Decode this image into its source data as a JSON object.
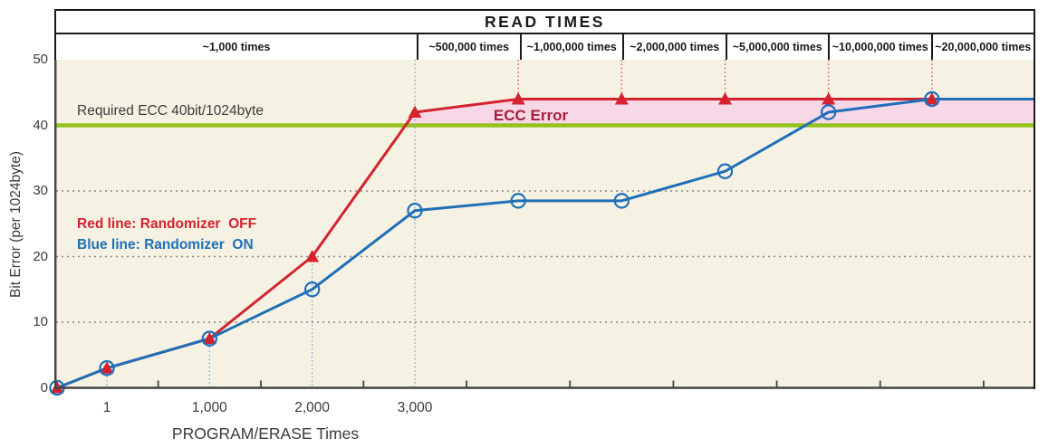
{
  "title": "READ TIMES",
  "read_time_columns": [
    "~1,000 times",
    "~500,000 times",
    "~1,000,000 times",
    "~2,000,000 times",
    "~5,000,000 times",
    "~10,000,000 times",
    "~20,000,000 times"
  ],
  "y_axis": {
    "label": "Bit Error (per 1024byte)",
    "ticks": [
      0,
      10,
      20,
      30,
      40,
      50
    ]
  },
  "x_axis": {
    "label": "PROGRAM/ERASE Times",
    "ticks": [
      "1",
      "1,000",
      "2,000",
      "3,000"
    ]
  },
  "annotations": {
    "threshold_label": "Required ECC 40bit/1024byte",
    "ecc_error_label": "ECC Error",
    "legend_red": "Red line: Randomizer  OFF",
    "legend_blue": "Blue line: Randomizer  ON"
  },
  "colors": {
    "red": "#d2232f",
    "blue": "#1e6fb8",
    "green": "#95c11f",
    "pink": "#f8d7e7",
    "ecc_error_text": "#a81e38",
    "background": "#f6f2e3",
    "grid": "#87877f",
    "red_dotted": "#e2606f",
    "blue_dotted": "#79b4d8",
    "axis": "#454545",
    "border": "#1a1a1a"
  },
  "chart_data": {
    "type": "line",
    "x_categories": [
      "0",
      "1",
      "1,000",
      "2,000",
      "3,000",
      "500,000 reads",
      "1,000,000 reads",
      "2,000,000 reads",
      "5,000,000 reads",
      "10,000,000 reads",
      "20,000,000 reads"
    ],
    "series": [
      {
        "name": "Randomizer OFF",
        "marker": "triangle",
        "values": [
          0,
          3,
          7.5,
          20,
          42,
          44,
          44,
          44,
          44,
          44,
          44
        ]
      },
      {
        "name": "Randomizer ON",
        "marker": "circle",
        "values": [
          0,
          3,
          7.5,
          15,
          27,
          28.5,
          28.5,
          33,
          42,
          44,
          44
        ]
      }
    ],
    "threshold": {
      "value": 40,
      "label": "Required ECC 40bit/1024byte"
    },
    "ylim": [
      0,
      50
    ],
    "ylabel": "Bit Error (per 1024byte)",
    "xlabel": "PROGRAM/ERASE Times",
    "shaded_region": "ECC Error: area between Randomizer OFF line and threshold 40"
  }
}
